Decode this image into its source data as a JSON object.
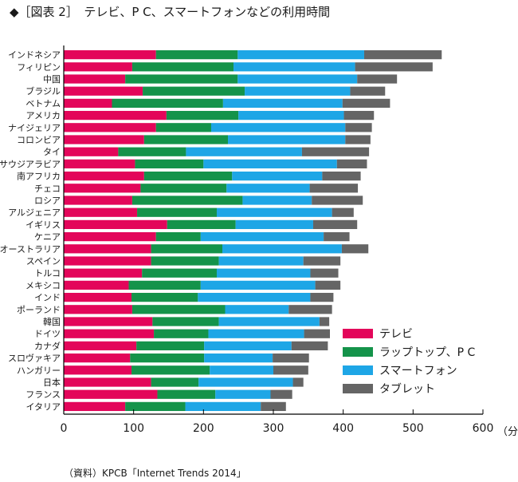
{
  "title": "◆［図表 2］　テレビ、P C、スマートフォンなどの利用時間",
  "source": "（資料）KPCB「Internet Trends 2014」",
  "unit": "（分）",
  "colors": {
    "tv": "#e3065a",
    "pc": "#14934a",
    "smartphone": "#1ea6e6",
    "tablet": "#656565",
    "axis": "#000000"
  },
  "chart_data": {
    "type": "bar",
    "orientation": "horizontal",
    "stacked": true,
    "title": "テレビ、P C、スマートフォンなどの利用時間",
    "xlim": [
      0,
      600
    ],
    "xticks": [
      0,
      100,
      200,
      300,
      400,
      500,
      600
    ],
    "xlabel": "（分）",
    "legend_position": "bottom-right",
    "categories": [
      "インドネシア",
      "フィリピン",
      "中国",
      "ブラジル",
      "ベトナム",
      "アメリカ",
      "ナイジェリア",
      "コロンビア",
      "タイ",
      "サウジアラビア",
      "南アフリカ",
      "チェコ",
      "ロシア",
      "アルジェニア",
      "イギリス",
      "ケニア",
      "オーストラリア",
      "スペイン",
      "トルコ",
      "メキシコ",
      "インド",
      "ポーランド",
      "韓国",
      "ドイツ",
      "カナダ",
      "スロヴァキア",
      "ハンガリー",
      "日本",
      "フランス",
      "イタリア"
    ],
    "series": [
      {
        "name": "テレビ",
        "values": [
          132,
          98,
          88,
          113,
          69,
          147,
          132,
          115,
          78,
          102,
          115,
          110,
          98,
          105,
          148,
          132,
          125,
          125,
          112,
          93,
          97,
          98,
          127,
          129,
          104,
          95,
          97,
          125,
          134,
          88
        ]
      },
      {
        "name": "ラップトップ、P C",
        "values": [
          117,
          145,
          161,
          146,
          159,
          103,
          79,
          120,
          97,
          98,
          126,
          123,
          158,
          114,
          98,
          64,
          102,
          97,
          107,
          103,
          95,
          133,
          95,
          78,
          97,
          106,
          112,
          68,
          83,
          86
        ]
      },
      {
        "name": "スマートフォン",
        "values": [
          181,
          174,
          171,
          151,
          171,
          151,
          192,
          168,
          166,
          191,
          129,
          119,
          99,
          165,
          111,
          176,
          171,
          121,
          134,
          164,
          161,
          91,
          144,
          137,
          125,
          98,
          91,
          135,
          79,
          108
        ]
      },
      {
        "name": "タブレット",
        "values": [
          111,
          111,
          57,
          50,
          68,
          43,
          38,
          36,
          96,
          43,
          55,
          69,
          73,
          31,
          63,
          37,
          38,
          53,
          40,
          36,
          33,
          62,
          14,
          37,
          52,
          52,
          50,
          15,
          31,
          36
        ]
      }
    ]
  }
}
